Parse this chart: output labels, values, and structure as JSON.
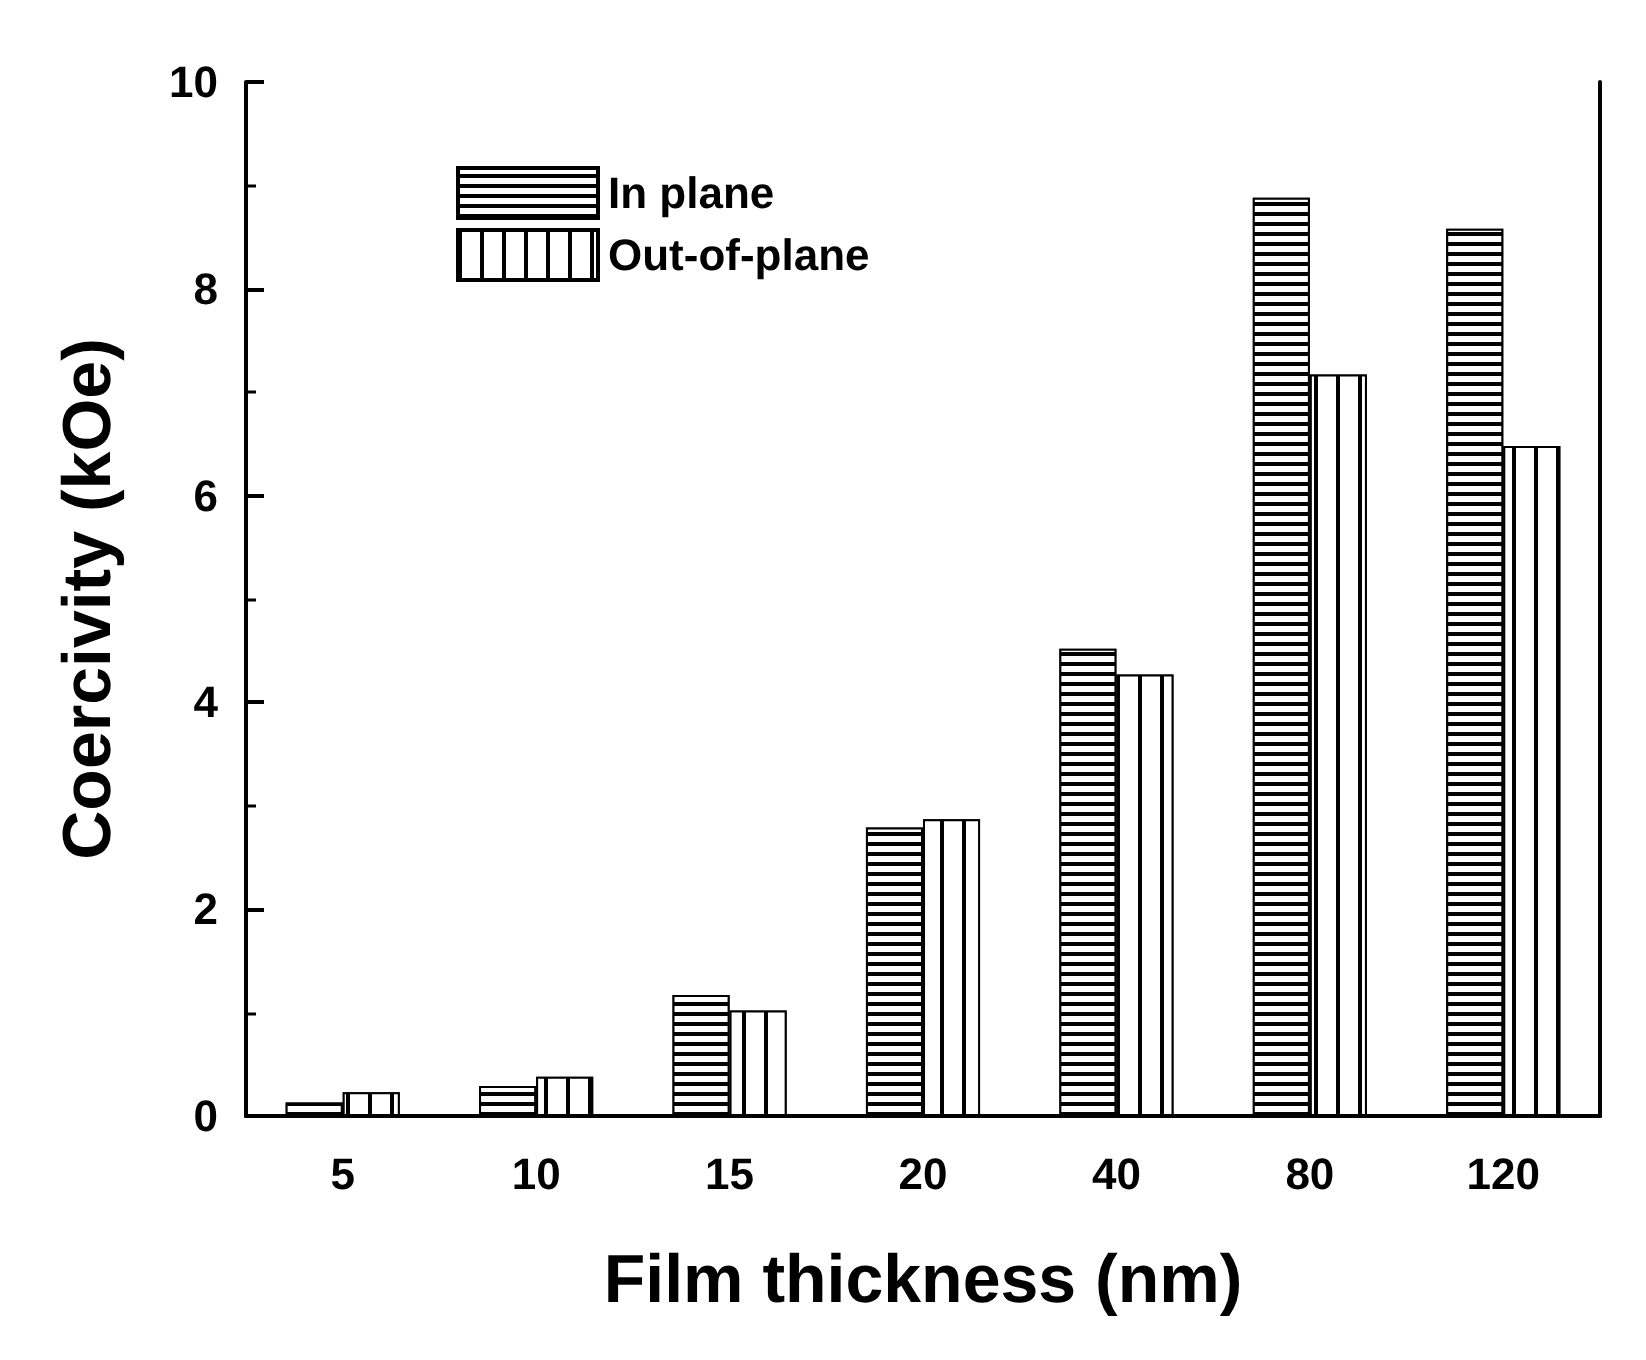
{
  "chart_data": {
    "type": "bar",
    "xlabel": "Film thickness (nm)",
    "ylabel": "Coercivity (kOe)",
    "categories": [
      "5",
      "10",
      "15",
      "20",
      "40",
      "80",
      "120"
    ],
    "series": [
      {
        "name": "In plane",
        "color": "#000000",
        "values": [
          0.13,
          0.29,
          1.17,
          2.79,
          4.52,
          8.88,
          8.58
        ]
      },
      {
        "name": "Out-of-plane",
        "color": "#000000",
        "values": [
          0.23,
          0.38,
          1.02,
          2.87,
          4.27,
          7.17,
          6.48
        ]
      }
    ],
    "ylim": [
      0,
      10
    ],
    "yticks": [
      0,
      2,
      4,
      6,
      8,
      10
    ],
    "grid": false,
    "legend": "top left"
  }
}
